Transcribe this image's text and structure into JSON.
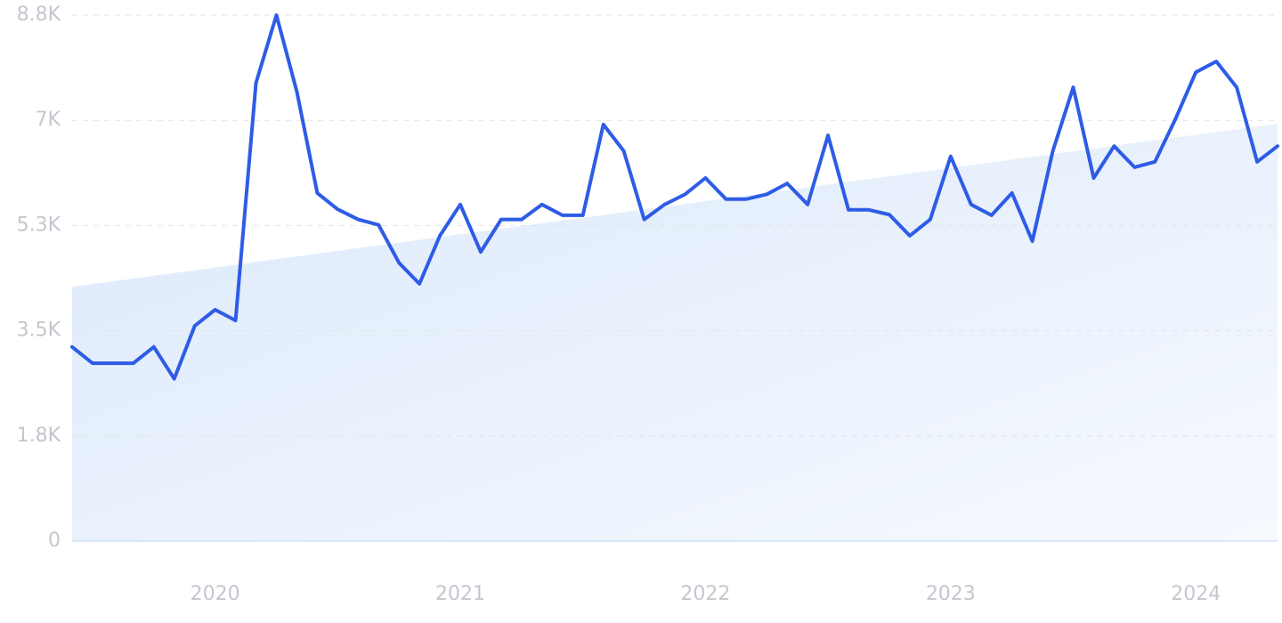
{
  "chart_data": {
    "type": "line",
    "categories": [
      null,
      null,
      null,
      null,
      null,
      null,
      null,
      "2020",
      null,
      null,
      null,
      null,
      null,
      null,
      null,
      null,
      null,
      null,
      null,
      "2021",
      null,
      null,
      null,
      null,
      null,
      null,
      null,
      null,
      null,
      null,
      null,
      "2022",
      null,
      null,
      null,
      null,
      null,
      null,
      null,
      null,
      null,
      null,
      null,
      "2023",
      null,
      null,
      null,
      null,
      null,
      null,
      null,
      null,
      null,
      null,
      null,
      "2024",
      null,
      null,
      null,
      null
    ],
    "series": [
      {
        "fill": "area",
        "color": "#dce9fb",
        "values": [
          4230,
          4276,
          4322,
          4368,
          4414,
          4460,
          4506,
          4552,
          4598,
          4644,
          4690,
          4736,
          4782,
          4828,
          4874,
          4920,
          4966,
          5012,
          5058,
          5104,
          5150,
          5196,
          5242,
          5288,
          5334,
          5380,
          5426,
          5472,
          5518,
          5564,
          5610,
          5656,
          5702,
          5748,
          5794,
          5840,
          5886,
          5932,
          5978,
          6024,
          6070,
          6116,
          6162,
          6208,
          6254,
          6300,
          6346,
          6392,
          6438,
          6484,
          6530,
          6576,
          6622,
          6668,
          6714,
          6760,
          6806,
          6852,
          6898,
          6944
        ]
      },
      {
        "fill": "none",
        "color": "#2e5ce6",
        "values": [
          3230,
          2960,
          2960,
          2960,
          3230,
          2700,
          3580,
          3850,
          3670,
          7620,
          8750,
          7480,
          5790,
          5520,
          5350,
          5260,
          4630,
          4280,
          5080,
          5600,
          4810,
          5350,
          5350,
          5600,
          5420,
          5420,
          6930,
          6490,
          5350,
          5600,
          5770,
          6040,
          5690,
          5690,
          5770,
          5950,
          5600,
          6750,
          5510,
          5510,
          5430,
          5080,
          5350,
          6400,
          5600,
          5420,
          5790,
          4990,
          6490,
          7550,
          6040,
          6570,
          6220,
          6310,
          7020,
          7800,
          7980,
          7550,
          6310,
          6570
        ]
      }
    ],
    "ylim": [
      0,
      8750
    ],
    "yticks": [
      0,
      {
        "value": 1750,
        "label": "1.8K"
      },
      {
        "value": 3500,
        "label": "3.5K"
      },
      {
        "value": 5250,
        "label": "5.3K"
      },
      {
        "value": 7000,
        "label": "7K"
      },
      {
        "value": 8750,
        "label": "8.8K"
      }
    ],
    "grid": true
  }
}
